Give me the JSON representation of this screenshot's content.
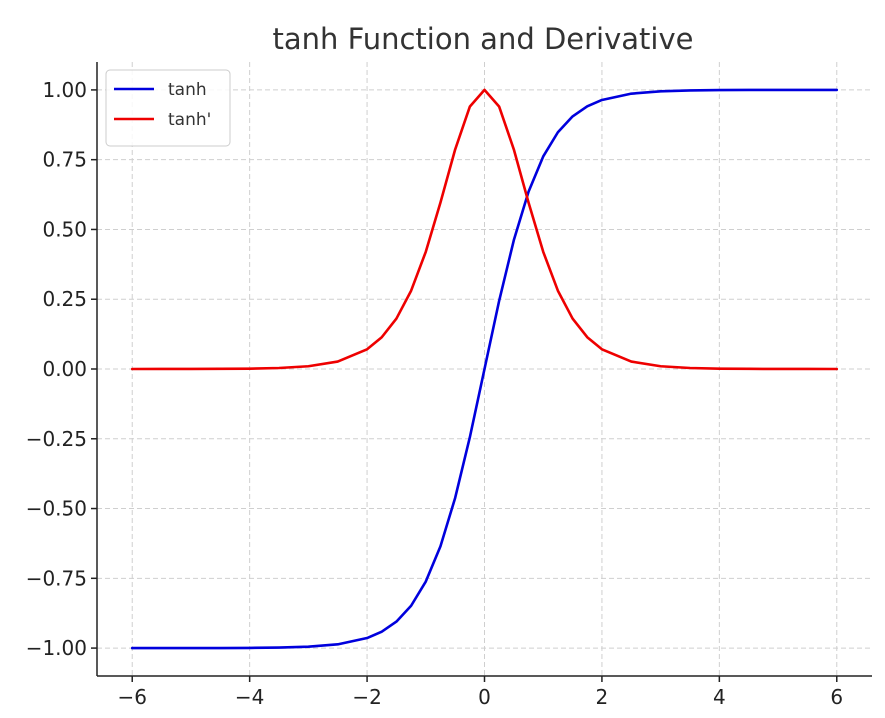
{
  "chart_data": {
    "type": "line",
    "title": "tanh Function and Derivative",
    "xlabel": "",
    "ylabel": "",
    "xlim": [
      -6.6,
      6.6
    ],
    "ylim": [
      -1.1,
      1.1
    ],
    "grid": true,
    "legend_position": "top-left",
    "x_ticks": [
      -6,
      -4,
      -2,
      0,
      2,
      4,
      6
    ],
    "x_tick_labels": [
      "−6",
      "−4",
      "−2",
      "0",
      "2",
      "4",
      "6"
    ],
    "y_ticks": [
      -1.0,
      -0.75,
      -0.5,
      -0.25,
      0.0,
      0.25,
      0.5,
      0.75,
      1.0
    ],
    "y_tick_labels": [
      "−1.00",
      "−0.75",
      "−0.50",
      "−0.25",
      "0.00",
      "0.25",
      "0.50",
      "0.75",
      "1.00"
    ],
    "x": [
      -6,
      -5.5,
      -5,
      -4.5,
      -4,
      -3.5,
      -3,
      -2.5,
      -2,
      -1.75,
      -1.5,
      -1.25,
      -1,
      -0.75,
      -0.5,
      -0.25,
      0,
      0.25,
      0.5,
      0.75,
      1,
      1.25,
      1.5,
      1.75,
      2,
      2.5,
      3,
      3.5,
      4,
      4.5,
      5,
      5.5,
      6
    ],
    "series": [
      {
        "name": "tanh",
        "color": "#0000dd",
        "values": [
          -1.0,
          -1.0,
          -0.9999,
          -0.9998,
          -0.9993,
          -0.9982,
          -0.9951,
          -0.9866,
          -0.964,
          -0.9414,
          -0.9051,
          -0.8483,
          -0.7616,
          -0.6351,
          -0.4621,
          -0.2449,
          0.0,
          0.2449,
          0.4621,
          0.6351,
          0.7616,
          0.8483,
          0.9051,
          0.9414,
          0.964,
          0.9866,
          0.9951,
          0.9982,
          0.9993,
          0.9998,
          0.9999,
          1.0,
          1.0
        ]
      },
      {
        "name": "tanh'",
        "color": "#ee0000",
        "values": [
          0.0,
          0.0001,
          0.0002,
          0.0005,
          0.0013,
          0.0036,
          0.0099,
          0.0266,
          0.0707,
          0.1138,
          0.1807,
          0.2805,
          0.42,
          0.5966,
          0.7864,
          0.94,
          1.0,
          0.94,
          0.7864,
          0.5966,
          0.42,
          0.2805,
          0.1807,
          0.1138,
          0.0707,
          0.0266,
          0.0099,
          0.0036,
          0.0013,
          0.0005,
          0.0002,
          0.0001,
          0.0
        ]
      }
    ]
  }
}
